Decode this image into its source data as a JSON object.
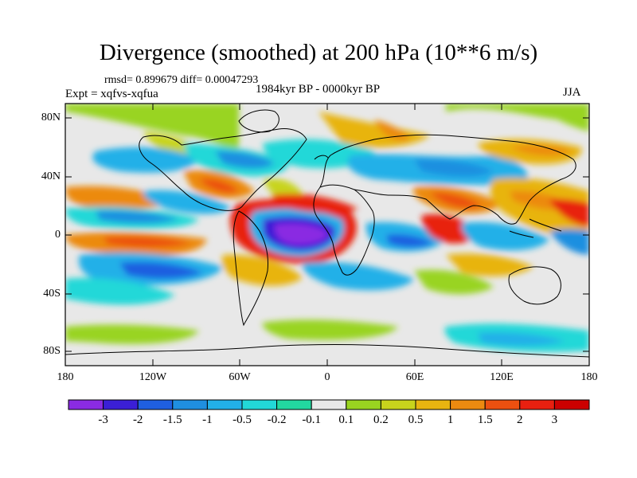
{
  "title": "Divergence (smoothed) at 200 hPa (10**6 m/s)",
  "stats_line": "rmsd= 0.899679  diff= 0.00047293",
  "experiment": "Expt = xqfvs-xqfua",
  "period": "1984kyr BP - 0000kyr BP",
  "season": "JJA",
  "lat_labels": [
    "80N",
    "40N",
    "0",
    "40S",
    "80S"
  ],
  "lon_labels": [
    "180",
    "120W",
    "60W",
    "0",
    "60E",
    "120E",
    "180"
  ],
  "colorbar": {
    "labels": [
      "-3",
      "-2",
      "-1.5",
      "-1",
      "-0.5",
      "-0.2",
      "-0.1",
      "0.1",
      "0.2",
      "0.5",
      "1",
      "1.5",
      "2",
      "3"
    ],
    "colors": [
      "#8a2be2",
      "#3b1fd6",
      "#1f5fe0",
      "#1f8fe0",
      "#22b0e8",
      "#22d8d8",
      "#22d8a0",
      "#e8e8e8",
      "#99d420",
      "#c8d41c",
      "#e8b410",
      "#ec8a10",
      "#ec5010",
      "#e82010",
      "#cc0000"
    ]
  },
  "colors": {
    "neutral": "#e8e8e8",
    "coast": "#000000"
  }
}
